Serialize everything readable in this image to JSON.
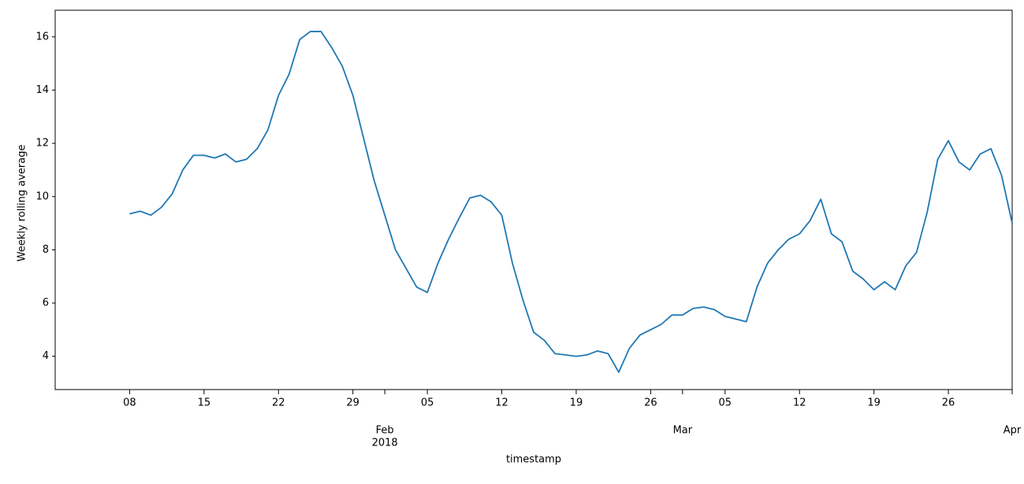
{
  "chart_data": {
    "type": "line",
    "x_label": "timestamp",
    "y_label": "Weekly rolling average",
    "x": [
      "2018-01-08",
      "2018-01-09",
      "2018-01-10",
      "2018-01-11",
      "2018-01-12",
      "2018-01-13",
      "2018-01-14",
      "2018-01-15",
      "2018-01-16",
      "2018-01-17",
      "2018-01-18",
      "2018-01-19",
      "2018-01-20",
      "2018-01-21",
      "2018-01-22",
      "2018-01-23",
      "2018-01-24",
      "2018-01-25",
      "2018-01-26",
      "2018-01-27",
      "2018-01-28",
      "2018-01-29",
      "2018-01-30",
      "2018-01-31",
      "2018-02-01",
      "2018-02-02",
      "2018-02-03",
      "2018-02-04",
      "2018-02-05",
      "2018-02-06",
      "2018-02-07",
      "2018-02-08",
      "2018-02-09",
      "2018-02-10",
      "2018-02-11",
      "2018-02-12",
      "2018-02-13",
      "2018-02-14",
      "2018-02-15",
      "2018-02-16",
      "2018-02-17",
      "2018-02-18",
      "2018-02-19",
      "2018-02-20",
      "2018-02-21",
      "2018-02-22",
      "2018-02-23",
      "2018-02-24",
      "2018-02-25",
      "2018-02-26",
      "2018-02-27",
      "2018-02-28",
      "2018-03-01",
      "2018-03-02",
      "2018-03-03",
      "2018-03-04",
      "2018-03-05",
      "2018-03-06",
      "2018-03-07",
      "2018-03-08",
      "2018-03-09",
      "2018-03-10",
      "2018-03-11",
      "2018-03-12",
      "2018-03-13",
      "2018-03-14",
      "2018-03-15",
      "2018-03-16",
      "2018-03-17",
      "2018-03-18",
      "2018-03-19",
      "2018-03-20",
      "2018-03-21",
      "2018-03-22",
      "2018-03-23",
      "2018-03-24",
      "2018-03-25",
      "2018-03-26",
      "2018-03-27",
      "2018-03-28",
      "2018-03-29",
      "2018-03-30",
      "2018-03-31",
      "2018-04-01"
    ],
    "series": [
      {
        "name": "Weekly rolling average",
        "color": "#1f77b4",
        "values": [
          9.35,
          9.45,
          9.3,
          9.6,
          10.1,
          11.0,
          11.55,
          11.55,
          11.45,
          11.6,
          11.3,
          11.4,
          11.8,
          12.5,
          13.8,
          14.6,
          15.9,
          16.2,
          16.2,
          15.6,
          14.9,
          13.8,
          12.2,
          10.6,
          9.3,
          8.0,
          7.3,
          6.6,
          6.4,
          7.5,
          8.4,
          9.2,
          9.95,
          10.05,
          9.8,
          9.3,
          7.5,
          6.1,
          4.9,
          4.6,
          4.1,
          4.05,
          4.0,
          4.05,
          4.2,
          4.1,
          3.4,
          4.3,
          4.8,
          5.0,
          5.2,
          5.55,
          5.55,
          5.8,
          5.85,
          5.75,
          5.5,
          5.4,
          5.3,
          6.6,
          7.5,
          8.0,
          8.4,
          8.6,
          9.1,
          9.9,
          8.6,
          8.3,
          7.2,
          6.9,
          6.5,
          6.8,
          6.5,
          7.4,
          7.9,
          9.4,
          11.4,
          12.1,
          11.3,
          11.0,
          11.6,
          11.8,
          10.8,
          9.0
        ]
      }
    ],
    "xlim": [
      "2018-01-01",
      "2018-04-01"
    ],
    "xticks": [
      {
        "value": "2018-01-08",
        "label": "08"
      },
      {
        "value": "2018-01-15",
        "label": "15"
      },
      {
        "value": "2018-01-22",
        "label": "22"
      },
      {
        "value": "2018-01-29",
        "label": "29"
      },
      {
        "value": "2018-02-01",
        "label": "Feb"
      },
      {
        "value": "2018-02-05",
        "label": "05"
      },
      {
        "value": "2018-02-12",
        "label": "12"
      },
      {
        "value": "2018-02-19",
        "label": "19"
      },
      {
        "value": "2018-02-26",
        "label": "26"
      },
      {
        "value": "2018-03-01",
        "label": "Mar"
      },
      {
        "value": "2018-03-05",
        "label": "05"
      },
      {
        "value": "2018-03-12",
        "label": "12"
      },
      {
        "value": "2018-03-19",
        "label": "19"
      },
      {
        "value": "2018-03-26",
        "label": "26"
      },
      {
        "value": "2018-04-01",
        "label": "Apr"
      }
    ],
    "x_year_label": "2018",
    "ylim": [
      2.75,
      17.0
    ],
    "yticks": [
      4,
      6,
      8,
      10,
      12,
      14,
      16
    ],
    "grid": false
  }
}
